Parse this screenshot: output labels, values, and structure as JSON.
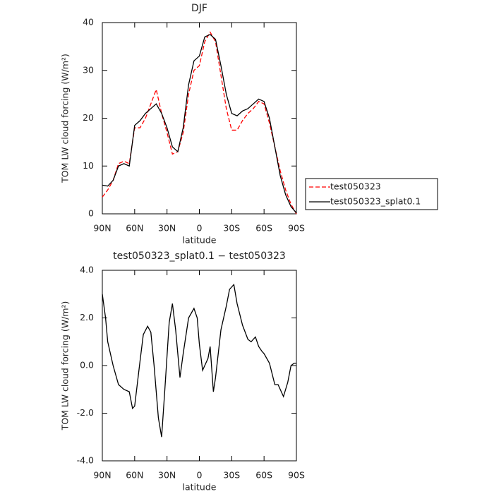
{
  "chart_data": [
    {
      "type": "line",
      "title": "DJF",
      "x_label": "latitude",
      "y_label": "TOM LW cloud forcing (W/m²)",
      "x": [
        90,
        85,
        80,
        75,
        70,
        65,
        60,
        55,
        50,
        45,
        40,
        35,
        30,
        25,
        20,
        15,
        10,
        5,
        0,
        -5,
        -10,
        -15,
        -20,
        -25,
        -30,
        -35,
        -40,
        -45,
        -50,
        -55,
        -60,
        -65,
        -70,
        -75,
        -80,
        -85,
        -90
      ],
      "series": [
        {
          "name": "test050323",
          "color": "#ff0000",
          "style": "dashed",
          "values": [
            3.5,
            5,
            7,
            10.5,
            11,
            10.5,
            18,
            18,
            20,
            23,
            26,
            21,
            17,
            12.5,
            13,
            17,
            25,
            30,
            31,
            36,
            38,
            36,
            29,
            22,
            17.5,
            17.5,
            19.5,
            21,
            22,
            23.5,
            23,
            19,
            14,
            9,
            5,
            2,
            0
          ]
        },
        {
          "name": "test050323_splat0.1",
          "color": "#000000",
          "style": "solid",
          "values": [
            6,
            5.8,
            7,
            10,
            10.5,
            10,
            18.5,
            19.5,
            21,
            22,
            23,
            21,
            18,
            14,
            13,
            18,
            27,
            32,
            33,
            37,
            37.5,
            36.5,
            31,
            25,
            21,
            20.5,
            21.5,
            22,
            23,
            24,
            23.5,
            20,
            14,
            8,
            4,
            1.5,
            0.2
          ]
        }
      ],
      "xlim": [
        90,
        -90
      ],
      "xticks": [
        {
          "value": 90,
          "label": "90N"
        },
        {
          "value": 60,
          "label": "60N"
        },
        {
          "value": 30,
          "label": "30N"
        },
        0,
        {
          "value": -30,
          "label": "30S"
        },
        {
          "value": -60,
          "label": "60S"
        },
        {
          "value": -90,
          "label": "90S"
        }
      ],
      "ylim": [
        0,
        40
      ],
      "yticks": [
        0,
        10,
        20,
        30,
        40
      ],
      "legend": "outside-right"
    },
    {
      "type": "line",
      "title": "test050323_splat0.1 − test050323",
      "x_label": "latitude",
      "y_label": "TOM LW cloud forcing (W/m²)",
      "x": [
        90,
        87,
        85,
        80,
        75,
        70,
        65,
        62,
        60,
        55,
        52,
        48,
        45,
        42,
        38,
        35,
        32,
        28,
        25,
        22,
        18,
        15,
        10,
        5,
        2,
        0,
        -3,
        -5,
        -8,
        -10,
        -13,
        -15,
        -20,
        -25,
        -28,
        -32,
        -35,
        -40,
        -45,
        -48,
        -52,
        -55,
        -58,
        -60,
        -65,
        -70,
        -73,
        -78,
        -82,
        -85,
        -88,
        -90
      ],
      "series": [
        {
          "color": "#000000",
          "style": "solid",
          "values": [
            3.0,
            2.0,
            1.0,
            0.0,
            -0.8,
            -1.0,
            -1.1,
            -1.8,
            -1.7,
            0.2,
            1.3,
            1.65,
            1.4,
            0.0,
            -2.2,
            -3.0,
            -1.0,
            1.8,
            2.6,
            1.5,
            -0.5,
            0.5,
            2.0,
            2.4,
            2.0,
            0.9,
            -0.2,
            0.0,
            0.3,
            0.8,
            -1.1,
            -0.5,
            1.5,
            2.5,
            3.2,
            3.4,
            2.6,
            1.7,
            1.1,
            1.0,
            1.2,
            0.8,
            0.6,
            0.5,
            0.1,
            -0.8,
            -0.8,
            -1.3,
            -0.7,
            0.0,
            0.1,
            0.1
          ]
        }
      ],
      "xlim": [
        90,
        -90
      ],
      "xticks": [
        {
          "value": 90,
          "label": "90N"
        },
        {
          "value": 60,
          "label": "60N"
        },
        {
          "value": 30,
          "label": "30N"
        },
        0,
        {
          "value": -30,
          "label": "30S"
        },
        {
          "value": -60,
          "label": "60S"
        },
        {
          "value": -90,
          "label": "90S"
        }
      ],
      "ylim": [
        -4,
        4
      ],
      "yticks": [
        {
          "value": 4,
          "label": "4.0"
        },
        {
          "value": 2,
          "label": "2.0"
        },
        {
          "value": 0,
          "label": "0.0"
        },
        {
          "value": -2,
          "label": "-2.0"
        },
        {
          "value": -4,
          "label": "-4.0"
        }
      ]
    }
  ]
}
